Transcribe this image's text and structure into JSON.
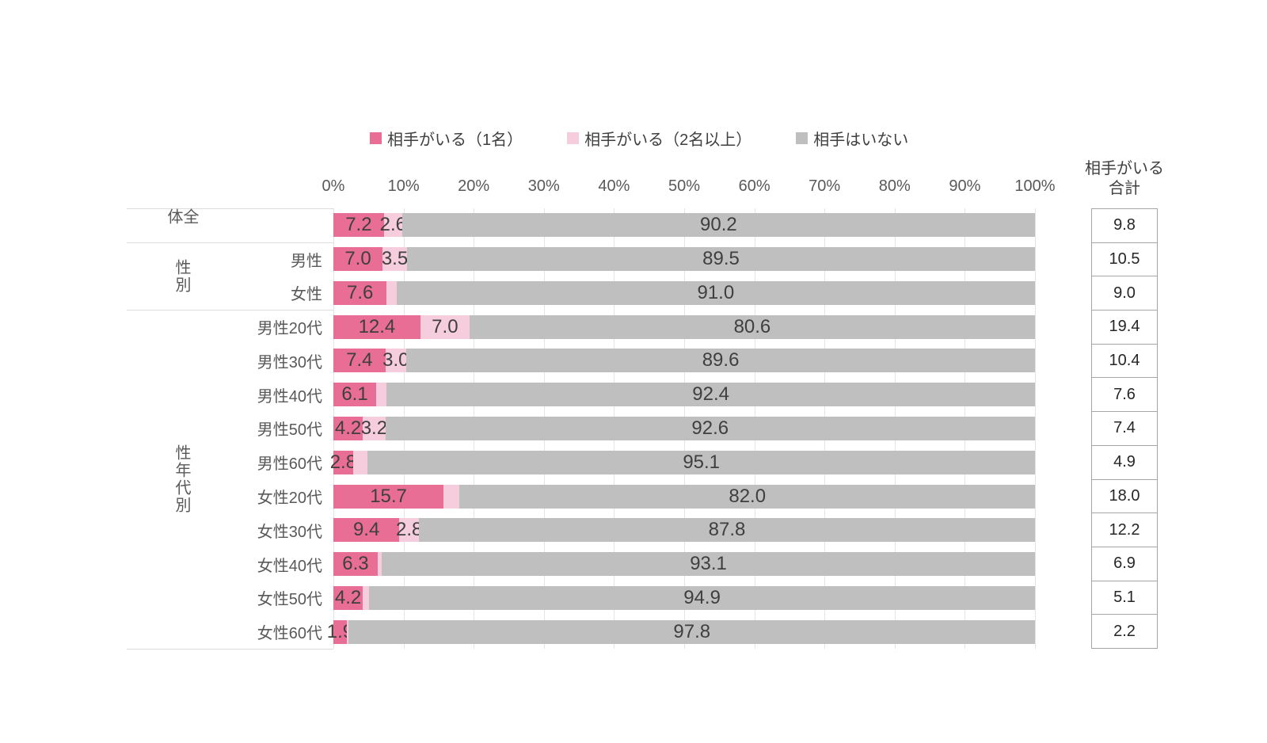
{
  "page": {
    "background": "#ffffff"
  },
  "legend": {
    "items": [
      {
        "label": "相手がいる（1名）",
        "color": "#e86e95"
      },
      {
        "label": "相手がいる（2名以上）",
        "color": "#f6cddc"
      },
      {
        "label": "相手はいない",
        "color": "#bfbfbf"
      }
    ]
  },
  "totals_header": {
    "line1": "相手がいる",
    "line2": "合計"
  },
  "chart_data": {
    "type": "bar",
    "stacked": true,
    "orientation": "horizontal",
    "unit": "percent",
    "xlim": [
      0,
      100
    ],
    "x_ticks": [
      "0%",
      "10%",
      "20%",
      "30%",
      "40%",
      "50%",
      "60%",
      "70%",
      "80%",
      "90%",
      "100%"
    ],
    "grid": true,
    "legend_position": "top",
    "series_names": [
      "相手がいる（1名）",
      "相手がいる（2名以上）",
      "相手はいない"
    ],
    "series_colors": [
      "#e86e95",
      "#f6cddc",
      "#bfbfbf"
    ],
    "totals_column_title": "相手がいる合計",
    "groups": [
      {
        "group": "全体",
        "rows": [
          {
            "label": "",
            "values": [
              7.2,
              2.6,
              90.2
            ],
            "value_labels": [
              "7.2",
              "2.6",
              "90.2"
            ],
            "total": "9.8"
          }
        ]
      },
      {
        "group": "性別",
        "rows": [
          {
            "label": "男性",
            "values": [
              7.0,
              3.5,
              89.5
            ],
            "value_labels": [
              "7.0",
              "3.5",
              "89.5"
            ],
            "total": "10.5"
          },
          {
            "label": "女性",
            "values": [
              7.6,
              1.4,
              91.0
            ],
            "value_labels": [
              "7.6",
              "",
              "91.0"
            ],
            "total": "9.0"
          }
        ]
      },
      {
        "group": "性年代別",
        "rows": [
          {
            "label": "男性20代",
            "values": [
              12.4,
              7.0,
              80.6
            ],
            "value_labels": [
              "12.4",
              "7.0",
              "80.6"
            ],
            "total": "19.4"
          },
          {
            "label": "男性30代",
            "values": [
              7.4,
              3.0,
              89.6
            ],
            "value_labels": [
              "7.4",
              "3.0",
              "89.6"
            ],
            "total": "10.4"
          },
          {
            "label": "男性40代",
            "values": [
              6.1,
              1.5,
              92.4
            ],
            "value_labels": [
              "6.1",
              "",
              "92.4"
            ],
            "total": "7.6"
          },
          {
            "label": "男性50代",
            "values": [
              4.2,
              3.2,
              92.6
            ],
            "value_labels": [
              "4.2",
              "3.2",
              "92.6"
            ],
            "total": "7.4"
          },
          {
            "label": "男性60代",
            "values": [
              2.8,
              2.1,
              95.1
            ],
            "value_labels": [
              "2.8",
              "",
              "95.1"
            ],
            "total": "4.9"
          },
          {
            "label": "女性20代",
            "values": [
              15.7,
              2.3,
              82.0
            ],
            "value_labels": [
              "15.7",
              "",
              "82.0"
            ],
            "total": "18.0"
          },
          {
            "label": "女性30代",
            "values": [
              9.4,
              2.8,
              87.8
            ],
            "value_labels": [
              "9.4",
              "2.8",
              "87.8"
            ],
            "total": "12.2"
          },
          {
            "label": "女性40代",
            "values": [
              6.3,
              0.6,
              93.1
            ],
            "value_labels": [
              "6.3",
              "",
              "93.1"
            ],
            "total": "6.9"
          },
          {
            "label": "女性50代",
            "values": [
              4.2,
              0.9,
              94.9
            ],
            "value_labels": [
              "4.2",
              "",
              "94.9"
            ],
            "total": "5.1"
          },
          {
            "label": "女性60代",
            "values": [
              1.9,
              0.3,
              97.8
            ],
            "value_labels": [
              "1.9",
              "",
              "97.8"
            ],
            "total": "2.2"
          }
        ]
      }
    ]
  }
}
